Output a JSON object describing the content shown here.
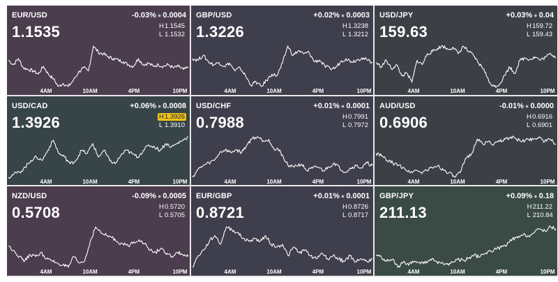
{
  "time_labels": [
    "4AM",
    "10AM",
    "4PM",
    "10PM"
  ],
  "chart_data": [
    {
      "type": "line",
      "pair": "EUR/USD",
      "price": "1.1535",
      "change": "-0.03%",
      "change_abs": "0.0004",
      "high": "1.1545",
      "low": "1.1532",
      "high_highlight": false,
      "bg": "#4b3c4e",
      "values": [
        1.15405,
        1.1539,
        1.1541,
        1.1538,
        1.15375,
        1.1537,
        1.1536,
        1.15385,
        1.1536,
        1.15345,
        1.1532,
        1.1533,
        1.1532,
        1.1534,
        1.15365,
        1.1538,
        1.1537,
        1.1545,
        1.1543,
        1.15425,
        1.15415,
        1.1541,
        1.15405,
        1.154,
        1.1539,
        1.15385,
        1.1541,
        1.1539,
        1.15395,
        1.15385,
        1.1539,
        1.15385,
        1.1539,
        1.1538,
        1.15385,
        1.15375,
        1.1538
      ]
    },
    {
      "type": "line",
      "pair": "GBP/USD",
      "price": "1.3226",
      "change": "+0.02%",
      "change_abs": "0.0003",
      "high": "1.3238",
      "low": "1.3212",
      "high_highlight": false,
      "bg": "#3e3e4c",
      "values": [
        1.323,
        1.3229,
        1.3232,
        1.3228,
        1.3226,
        1.32275,
        1.3225,
        1.3227,
        1.3222,
        1.3224,
        1.3219,
        1.3213,
        1.3215,
        1.3212,
        1.3216,
        1.322,
        1.3219,
        1.3227,
        1.3238,
        1.3232,
        1.3235,
        1.3233,
        1.3234,
        1.3228,
        1.3229,
        1.3225,
        1.32235,
        1.3224,
        1.3228,
        1.323,
        1.3228,
        1.3229,
        1.32305,
        1.3229,
        1.32275
      ]
    },
    {
      "type": "line",
      "pair": "USD/JPY",
      "price": "159.63",
      "change": "+0.03%",
      "change_abs": "0.04",
      "high": "159.72",
      "low": "159.43",
      "high_highlight": false,
      "bg": "#3c4046",
      "values": [
        159.55,
        159.53,
        159.56,
        159.52,
        159.54,
        159.49,
        159.5,
        159.46,
        159.56,
        159.54,
        159.59,
        159.6,
        159.615,
        159.625,
        159.61,
        159.62,
        159.59,
        159.625,
        159.6,
        159.58,
        159.545,
        159.52,
        159.46,
        159.44,
        159.45,
        159.49,
        159.53,
        159.5,
        159.56,
        159.57,
        159.565,
        159.575,
        159.56,
        159.575,
        159.59,
        159.575
      ]
    },
    {
      "type": "line",
      "pair": "USD/CAD",
      "price": "1.3926",
      "change": "+0.06%",
      "change_abs": "0.0008",
      "high": "1.3926",
      "low": "1.3910",
      "high_highlight": true,
      "bg": "#374448",
      "values": [
        1.391,
        1.3911,
        1.39115,
        1.3913,
        1.3915,
        1.3916,
        1.3915,
        1.3918,
        1.3921,
        1.3917,
        1.3916,
        1.3914,
        1.3915,
        1.3918,
        1.3917,
        1.392,
        1.3916,
        1.3918,
        1.3915,
        1.3914,
        1.39165,
        1.3918,
        1.3917,
        1.3916,
        1.3918,
        1.39195,
        1.3919,
        1.3918,
        1.392,
        1.3919,
        1.392,
        1.3921,
        1.3922
      ]
    },
    {
      "type": "line",
      "pair": "USD/CHF",
      "price": "0.7988",
      "change": "+0.01%",
      "change_abs": "0.0001",
      "high": "0.7991",
      "low": "0.7972",
      "high_highlight": false,
      "bg": "#3e3e4c",
      "values": [
        0.79735,
        0.79765,
        0.7978,
        0.7979,
        0.798,
        0.7983,
        0.7984,
        0.7983,
        0.7984,
        0.7983,
        0.7986,
        0.79885,
        0.7989,
        0.79875,
        0.7988,
        0.7984,
        0.7984,
        0.79795,
        0.79775,
        0.7978,
        0.79785,
        0.7976,
        0.7977,
        0.79775,
        0.7976,
        0.79775,
        0.7979,
        0.7977,
        0.79755,
        0.7977,
        0.7978,
        0.7977,
        0.7979,
        0.7978
      ]
    },
    {
      "type": "line",
      "pair": "AUD/USD",
      "price": "0.6906",
      "change": "-0.01%",
      "change_abs": "0.0000",
      "high": "0.6916",
      "low": "0.6901",
      "high_highlight": false,
      "bg": "#3c4046",
      "values": [
        0.6906,
        0.69055,
        0.69045,
        0.6904,
        0.69035,
        0.6903,
        0.6902,
        0.69025,
        0.6902,
        0.69025,
        0.6903,
        0.69035,
        0.69025,
        0.6902,
        0.6901,
        0.6902,
        0.6905,
        0.6906,
        0.6909,
        0.6908,
        0.69085,
        0.6908,
        0.69085,
        0.6909,
        0.69095,
        0.6909,
        0.69085,
        0.6909,
        0.6909,
        0.69095,
        0.69085,
        0.6909,
        0.6908
      ]
    },
    {
      "type": "line",
      "pair": "NZD/USD",
      "price": "0.5708",
      "change": "-0.09%",
      "change_abs": "0.0005",
      "high": "0.5720",
      "low": "0.5705",
      "high_highlight": false,
      "bg": "#4b3c4e",
      "values": [
        0.571,
        0.5709,
        0.57075,
        0.57065,
        0.5708,
        0.57075,
        0.57085,
        0.5707,
        0.57065,
        0.5706,
        0.57055,
        0.5705,
        0.57075,
        0.5706,
        0.57065,
        0.5711,
        0.57145,
        0.5713,
        0.57125,
        0.5712,
        0.5711,
        0.57105,
        0.571,
        0.5711,
        0.57115,
        0.57105,
        0.5709,
        0.57085,
        0.57095,
        0.5708,
        0.57075,
        0.57085,
        0.5708,
        0.57075
      ]
    },
    {
      "type": "line",
      "pair": "EUR/GBP",
      "price": "0.8721",
      "change": "+0.01%",
      "change_abs": "0.0001",
      "high": "0.8726",
      "low": "0.8717",
      "high_highlight": false,
      "bg": "#3e3e4c",
      "values": [
        0.87165,
        0.87185,
        0.87195,
        0.8721,
        0.8722,
        0.87205,
        0.87235,
        0.8723,
        0.87225,
        0.87215,
        0.8721,
        0.87215,
        0.8721,
        0.8722,
        0.87205,
        0.872,
        0.87205,
        0.87185,
        0.872,
        0.8719,
        0.87195,
        0.87185,
        0.8718,
        0.8719,
        0.8718,
        0.87185,
        0.8718,
        0.87175,
        0.87185,
        0.87175,
        0.8718,
        0.87175,
        0.8718
      ]
    },
    {
      "type": "line",
      "pair": "GBP/JPY",
      "price": "211.13",
      "change": "+0.09%",
      "change_abs": "0.18",
      "high": "211.22",
      "low": "210.84",
      "high_highlight": false,
      "bg": "#3a4a45",
      "values": [
        210.96,
        210.95,
        210.93,
        210.94,
        210.9,
        210.925,
        210.91,
        210.93,
        210.925,
        210.92,
        210.94,
        210.93,
        210.92,
        210.915,
        210.925,
        210.94,
        210.935,
        210.945,
        210.96,
        210.95,
        210.97,
        210.98,
        210.99,
        211.0,
        211.01,
        211.04,
        211.045,
        211.06,
        211.055,
        211.07,
        211.09,
        211.08,
        211.1,
        211.09
      ]
    }
  ]
}
